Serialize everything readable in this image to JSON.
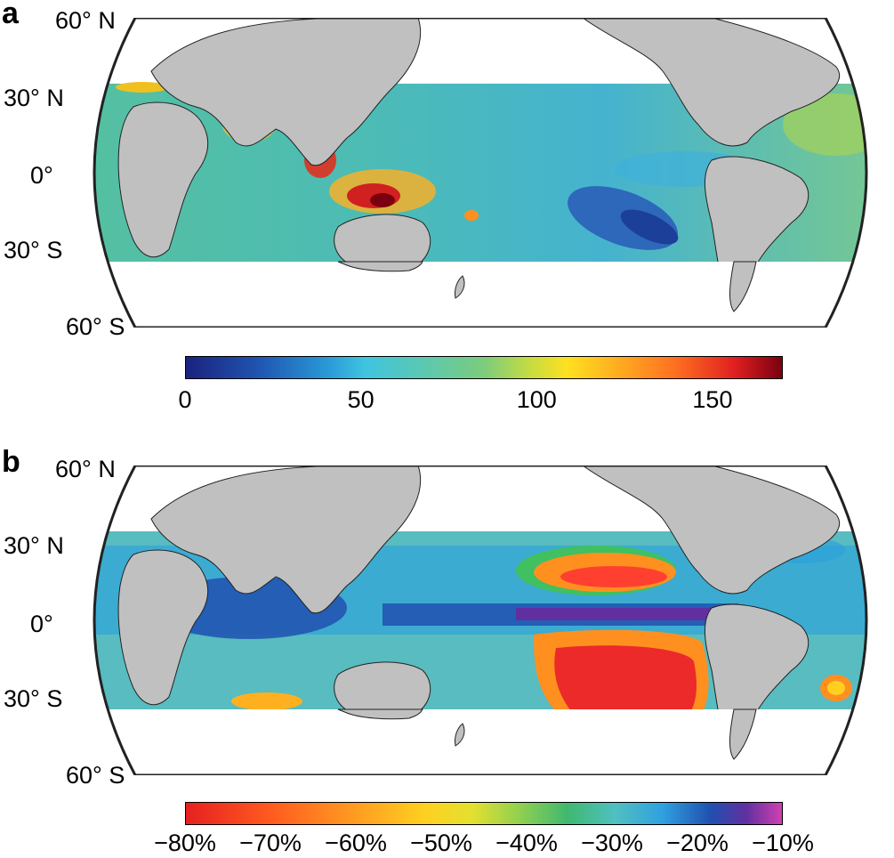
{
  "panels": [
    {
      "letter": "a",
      "lat_labels": [
        "60° N",
        "30° N",
        "0°",
        "30° S",
        "60° S"
      ],
      "colorbar": {
        "ticks": [
          "0",
          "50",
          "100",
          "150"
        ],
        "tick_values": [
          0,
          50,
          100,
          150
        ],
        "min": 0,
        "max": 170,
        "colormap": "jet"
      }
    },
    {
      "letter": "b",
      "lat_labels": [
        "60° N",
        "30° N",
        "0°",
        "30° S",
        "60° S"
      ],
      "colorbar": {
        "ticks": [
          "−80%",
          "−70%",
          "−60%",
          "−50%",
          "−40%",
          "−30%",
          "−20%",
          "−10%"
        ],
        "tick_values": [
          -80,
          -70,
          -60,
          -50,
          -40,
          -30,
          -20,
          -10
        ],
        "min": -80,
        "max": -10,
        "colormap": "reversed-jet-to-magenta"
      }
    }
  ],
  "colors": {
    "land": "#c0c0c0",
    "ocean_base": "#5fbfa8",
    "outline": "#222222"
  }
}
